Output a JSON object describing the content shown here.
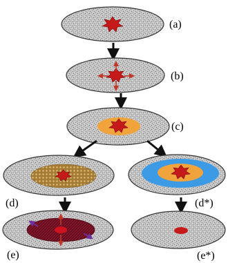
{
  "diagram": {
    "panels": [
      {
        "id": "a",
        "label": "(a)"
      },
      {
        "id": "b",
        "label": "(b)"
      },
      {
        "id": "c",
        "label": "(c)"
      },
      {
        "id": "d",
        "label": "(d)"
      },
      {
        "id": "d_star",
        "label": "(d*)"
      },
      {
        "id": "e",
        "label": "(e)"
      },
      {
        "id": "e_star",
        "label": "(e*)"
      }
    ],
    "colors": {
      "disk_fill": "#b9b9b9",
      "disk_outline": "#333333",
      "burst": "#c61a1a",
      "burst_dark": "#7a0000",
      "orange_ring": "#f1a33c",
      "blue_ring": "#3d9be5",
      "honeycomb_ring": "#a57c35",
      "dark_red_zone": "#6b0a1c",
      "purple_arrow": "#7030a0",
      "red_arrow": "#c0392b",
      "flow_arrow": "#111111"
    }
  }
}
